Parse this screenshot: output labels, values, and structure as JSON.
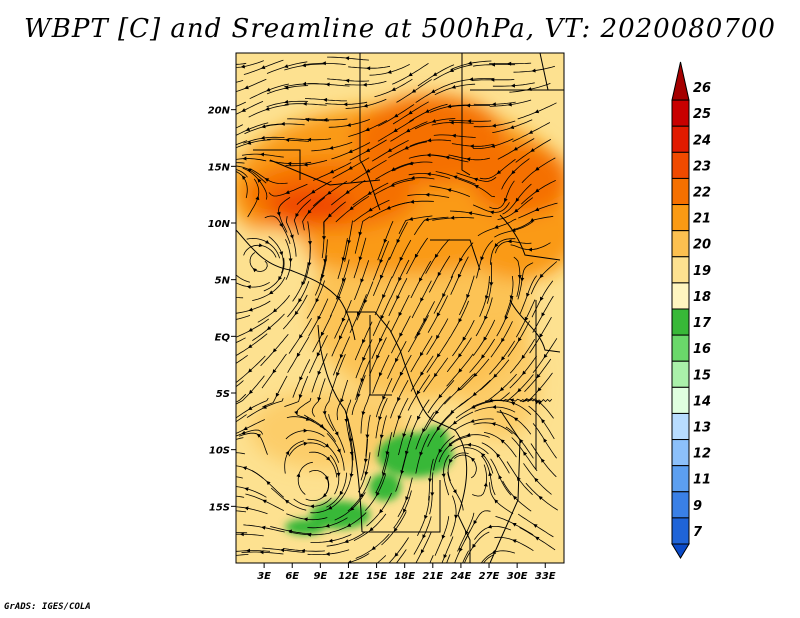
{
  "title": "WBPT [C] and Sreamline at 500hPa, VT: 2020080700",
  "credit": "GrADS: IGES/COLA",
  "map": {
    "lon_range": [
      0,
      35
    ],
    "lat_range": [
      -20,
      25
    ],
    "lon_ticks": [
      {
        "value": 3,
        "label": "3E"
      },
      {
        "value": 6,
        "label": "6E"
      },
      {
        "value": 9,
        "label": "9E"
      },
      {
        "value": 12,
        "label": "12E"
      },
      {
        "value": 15,
        "label": "15E"
      },
      {
        "value": 18,
        "label": "18E"
      },
      {
        "value": 21,
        "label": "21E"
      },
      {
        "value": 24,
        "label": "24E"
      },
      {
        "value": 27,
        "label": "27E"
      },
      {
        "value": 30,
        "label": "30E"
      },
      {
        "value": 33,
        "label": "33E"
      }
    ],
    "lat_ticks": [
      {
        "value": 20,
        "label": "20N"
      },
      {
        "value": 15,
        "label": "15N"
      },
      {
        "value": 10,
        "label": "10N"
      },
      {
        "value": 5,
        "label": "5N"
      },
      {
        "value": 0,
        "label": "EQ"
      },
      {
        "value": -5,
        "label": "5S"
      },
      {
        "value": -10,
        "label": "10S"
      },
      {
        "value": -15,
        "label": "15S"
      }
    ]
  },
  "colorbar": {
    "levels": [
      {
        "label": "26",
        "color": "#a50000"
      },
      {
        "label": "25",
        "color": "#c80000"
      },
      {
        "label": "24",
        "color": "#e11b00"
      },
      {
        "label": "23",
        "color": "#f04a00"
      },
      {
        "label": "22",
        "color": "#f57000"
      },
      {
        "label": "21",
        "color": "#fa9a14"
      },
      {
        "label": "20",
        "color": "#fcc050"
      },
      {
        "label": "19",
        "color": "#fde190"
      },
      {
        "label": "18",
        "color": "#fff5c0"
      },
      {
        "label": "17",
        "color": "#38b838"
      },
      {
        "label": "16",
        "color": "#6ad86a"
      },
      {
        "label": "15",
        "color": "#aaf0aa"
      },
      {
        "label": "14",
        "color": "#e0ffe0"
      },
      {
        "label": "13",
        "color": "#b8dcff"
      },
      {
        "label": "12",
        "color": "#8cc0fa"
      },
      {
        "label": "11",
        "color": "#5c9ff0"
      },
      {
        "label": "9",
        "color": "#3a80e6"
      },
      {
        "label": "7",
        "color": "#1f64d8"
      }
    ],
    "bottom_color": "#0a4ac8"
  }
}
